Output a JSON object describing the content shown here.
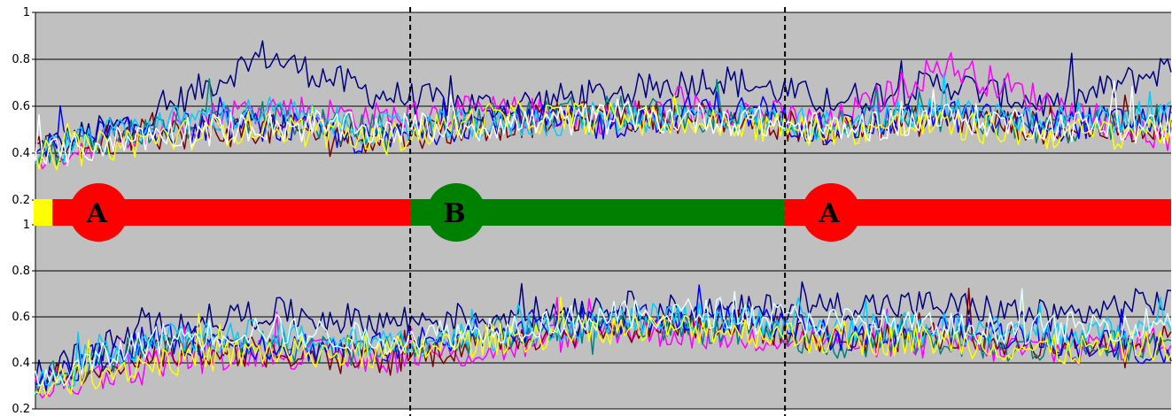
{
  "chart_data": [
    {
      "type": "line",
      "panel": "top",
      "ylim": [
        0.2,
        1
      ],
      "yticks": [
        "1",
        "0.8",
        "0.6",
        "0.4",
        "0.2"
      ],
      "grid": true,
      "x": [
        0,
        0.1,
        0.2,
        0.3,
        0.4,
        0.5,
        0.6,
        0.7,
        0.8,
        0.9,
        1.0
      ],
      "series": [
        {
          "color": "#000080",
          "values": [
            0.42,
            0.55,
            0.82,
            0.65,
            0.6,
            0.65,
            0.72,
            0.62,
            0.7,
            0.6,
            0.77
          ]
        },
        {
          "color": "#FF00FF",
          "values": [
            0.38,
            0.5,
            0.6,
            0.55,
            0.58,
            0.55,
            0.6,
            0.52,
            0.78,
            0.6,
            0.45
          ]
        },
        {
          "color": "#800000",
          "values": [
            0.4,
            0.48,
            0.5,
            0.47,
            0.52,
            0.56,
            0.55,
            0.5,
            0.55,
            0.5,
            0.52
          ]
        },
        {
          "color": "#008080",
          "values": [
            0.4,
            0.5,
            0.55,
            0.5,
            0.55,
            0.58,
            0.55,
            0.52,
            0.55,
            0.5,
            0.55
          ]
        },
        {
          "color": "#0000FF",
          "values": [
            0.42,
            0.5,
            0.52,
            0.45,
            0.55,
            0.52,
            0.6,
            0.5,
            0.56,
            0.52,
            0.55
          ]
        },
        {
          "color": "#00CCFF",
          "values": [
            0.4,
            0.52,
            0.58,
            0.5,
            0.52,
            0.55,
            0.56,
            0.52,
            0.58,
            0.55,
            0.55
          ]
        },
        {
          "color": "#FFFF00",
          "values": [
            0.38,
            0.46,
            0.52,
            0.45,
            0.55,
            0.55,
            0.52,
            0.5,
            0.52,
            0.48,
            0.5
          ]
        },
        {
          "color": "#FFFFFF",
          "values": [
            0.38,
            0.48,
            0.52,
            0.5,
            0.52,
            0.55,
            0.55,
            0.5,
            0.55,
            0.52,
            0.5
          ]
        }
      ]
    },
    {
      "type": "line",
      "panel": "bottom",
      "ylim": [
        0.2,
        1
      ],
      "yticks": [
        "1",
        "0.8",
        "0.6",
        "0.4",
        "0.2"
      ],
      "grid": true,
      "x": [
        0,
        0.1,
        0.2,
        0.3,
        0.4,
        0.5,
        0.6,
        0.7,
        0.8,
        0.9,
        1.0
      ],
      "series": [
        {
          "color": "#000080",
          "values": [
            0.35,
            0.55,
            0.62,
            0.58,
            0.6,
            0.65,
            0.62,
            0.65,
            0.65,
            0.6,
            0.68
          ]
        },
        {
          "color": "#FF00FF",
          "values": [
            0.28,
            0.4,
            0.45,
            0.42,
            0.45,
            0.55,
            0.52,
            0.5,
            0.48,
            0.45,
            0.5
          ]
        },
        {
          "color": "#800000",
          "values": [
            0.32,
            0.45,
            0.45,
            0.4,
            0.5,
            0.55,
            0.58,
            0.5,
            0.52,
            0.48,
            0.5
          ]
        },
        {
          "color": "#008080",
          "values": [
            0.32,
            0.48,
            0.48,
            0.45,
            0.52,
            0.56,
            0.55,
            0.48,
            0.5,
            0.45,
            0.5
          ]
        },
        {
          "color": "#0000FF",
          "values": [
            0.33,
            0.5,
            0.48,
            0.46,
            0.55,
            0.58,
            0.6,
            0.52,
            0.55,
            0.5,
            0.45
          ]
        },
        {
          "color": "#00CCFF",
          "values": [
            0.3,
            0.5,
            0.52,
            0.48,
            0.52,
            0.58,
            0.6,
            0.55,
            0.55,
            0.52,
            0.55
          ]
        },
        {
          "color": "#FFFF00",
          "values": [
            0.3,
            0.4,
            0.45,
            0.44,
            0.5,
            0.55,
            0.55,
            0.5,
            0.5,
            0.45,
            0.48
          ]
        },
        {
          "color": "#E0FFFF",
          "values": [
            0.3,
            0.5,
            0.55,
            0.5,
            0.55,
            0.6,
            0.62,
            0.58,
            0.55,
            0.55,
            0.58
          ]
        }
      ]
    }
  ],
  "phases": [
    {
      "label": "A",
      "color": "#FF0000",
      "start": 0.015,
      "end": 0.33
    },
    {
      "label": "B",
      "color": "#008000",
      "start": 0.33,
      "end": 0.66
    },
    {
      "label": "A",
      "color": "#FF0000",
      "start": 0.66,
      "end": 1.0
    }
  ],
  "baseline_block": {
    "color": "#FFFF00"
  },
  "plot_background": "#C0C0C0",
  "phase_boundaries": [
    0.33,
    0.66
  ]
}
